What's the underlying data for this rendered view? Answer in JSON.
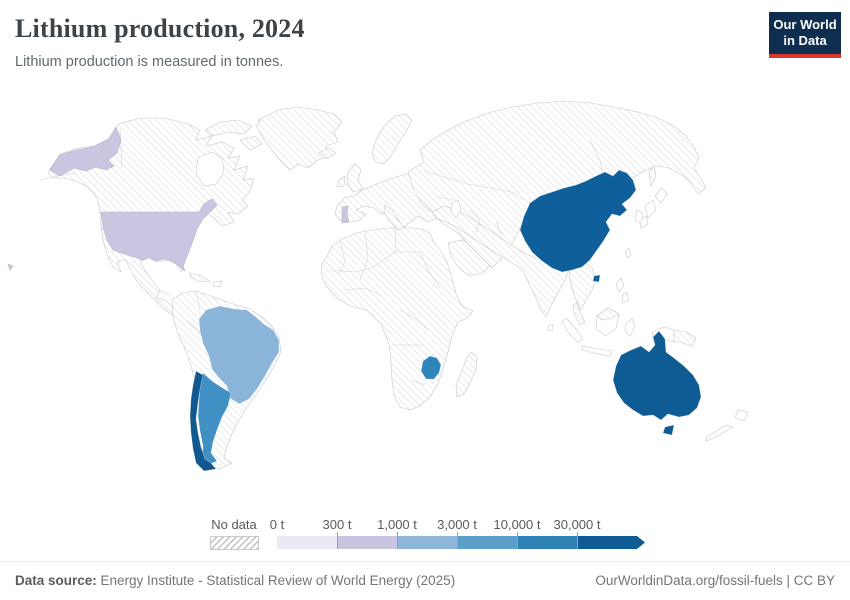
{
  "header": {
    "title": "Lithium production, 2024",
    "subtitle": "Lithium production is measured in tonnes."
  },
  "logo": {
    "line1": "Our World",
    "line2": "in Data"
  },
  "legend": {
    "no_data_label": "No data",
    "ticks": [
      "0 t",
      "300 t",
      "1,000 t",
      "3,000 t",
      "10,000 t",
      "30,000 t"
    ],
    "colors": [
      "#ebeaf4",
      "#c8c5e1",
      "#8eb6da",
      "#5b9ec9",
      "#2d81b5",
      "#0f5b94"
    ]
  },
  "map": {
    "fills": {
      "usa": "#c8c6e1",
      "alaska": "#c8c6e1",
      "hawaii": "#c8c6e1",
      "portugal": "#c8c6e1",
      "brazil": "#8ab4d8",
      "argentina": "#4190c4",
      "chile": "#10588f",
      "zimbabwe": "#2d85ba",
      "china": "#0f5f9b",
      "hainan": "#0f5f9b",
      "australia": "#0f5b94",
      "tasmania": "#0f5b94"
    }
  },
  "chart_data": {
    "type": "choropleth_map",
    "title": "Lithium production, 2024",
    "subtitle": "Lithium production is measured in tonnes.",
    "unit": "tonnes",
    "legend_bins": [
      {
        "label": "No data",
        "style": "hatched"
      },
      {
        "range": "0-300 t",
        "color": "#ebeaf4"
      },
      {
        "range": "300-1,000 t",
        "color": "#c8c5e1"
      },
      {
        "range": "1,000-3,000 t",
        "color": "#8eb6da"
      },
      {
        "range": "3,000-10,000 t",
        "color": "#5b9ec9"
      },
      {
        "range": "10,000-30,000 t",
        "color": "#2d81b5"
      },
      {
        "range": "30,000+ t",
        "color": "#0f5b94"
      }
    ],
    "countries": [
      {
        "name": "United States",
        "band": "300-1,000 t"
      },
      {
        "name": "Portugal",
        "band": "300-1,000 t"
      },
      {
        "name": "Brazil",
        "band": "1,000-3,000 t"
      },
      {
        "name": "Argentina",
        "band": "3,000-10,000 t"
      },
      {
        "name": "Zimbabwe",
        "band": "10,000-30,000 t"
      },
      {
        "name": "Chile",
        "band": "30,000+ t"
      },
      {
        "name": "China",
        "band": "30,000+ t"
      },
      {
        "name": "Australia",
        "band": "30,000+ t"
      },
      {
        "name": "All other countries",
        "band": "No data"
      }
    ]
  },
  "footer": {
    "source_label": "Data source:",
    "source_text": " Energy Institute - Statistical Review of World Energy (2025)",
    "right_text": "OurWorldinData.org/fossil-fuels | CC BY"
  }
}
